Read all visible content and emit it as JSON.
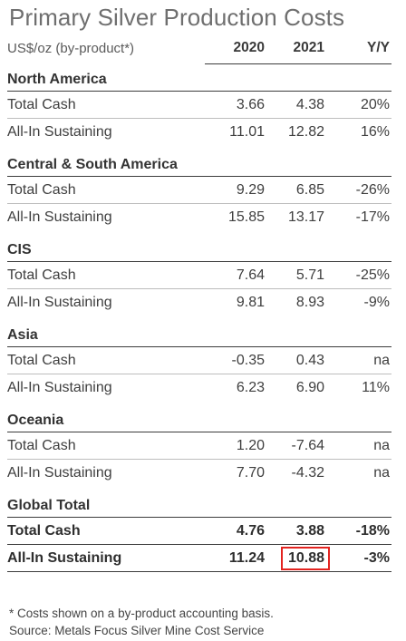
{
  "title": "Primary Silver Production Costs",
  "header": {
    "unit_label": "US$/oz (by-product*)",
    "col_2020": "2020",
    "col_2021": "2021",
    "col_yy": "Y/Y"
  },
  "sections": [
    {
      "name": "North America",
      "rows": [
        {
          "label": "Total Cash",
          "v2020": "3.66",
          "v2021": "4.38",
          "yy": "20%"
        },
        {
          "label": "All-In Sustaining",
          "v2020": "11.01",
          "v2021": "12.82",
          "yy": "16%"
        }
      ]
    },
    {
      "name": "Central & South America",
      "rows": [
        {
          "label": "Total Cash",
          "v2020": "9.29",
          "v2021": "6.85",
          "yy": "-26%"
        },
        {
          "label": "All-In Sustaining",
          "v2020": "15.85",
          "v2021": "13.17",
          "yy": "-17%"
        }
      ]
    },
    {
      "name": "CIS",
      "rows": [
        {
          "label": "Total Cash",
          "v2020": "7.64",
          "v2021": "5.71",
          "yy": "-25%"
        },
        {
          "label": "All-In Sustaining",
          "v2020": "9.81",
          "v2021": "8.93",
          "yy": "-9%"
        }
      ]
    },
    {
      "name": "Asia",
      "rows": [
        {
          "label": "Total Cash",
          "v2020": "-0.35",
          "v2021": "0.43",
          "yy": "na"
        },
        {
          "label": "All-In Sustaining",
          "v2020": "6.23",
          "v2021": "6.90",
          "yy": "11%"
        }
      ]
    },
    {
      "name": "Oceania",
      "rows": [
        {
          "label": "Total Cash",
          "v2020": "1.20",
          "v2021": "-7.64",
          "yy": "na"
        },
        {
          "label": "All-In Sustaining",
          "v2020": "7.70",
          "v2021": "-4.32",
          "yy": "na"
        }
      ]
    },
    {
      "name": "Global Total",
      "rows": [
        {
          "label": "Total Cash",
          "v2020": "4.76",
          "v2021": "3.88",
          "yy": "-18%"
        },
        {
          "label": "All-In Sustaining",
          "v2020": "11.24",
          "v2021": "10.88",
          "yy": "-3%"
        }
      ]
    }
  ],
  "highlight_color": "#e3231f",
  "footnote": "* Costs shown on a by-product accounting basis.",
  "source": "Source: Metals Focus Silver Mine Cost Service"
}
